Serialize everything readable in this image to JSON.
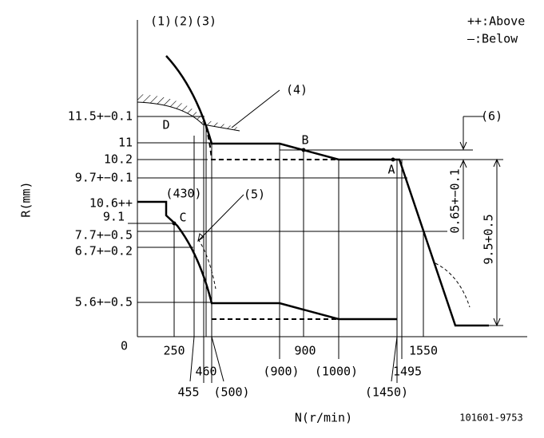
{
  "header": {
    "labels": [
      "(1)",
      "(2)",
      "(3)"
    ],
    "legend": [
      "++:Above",
      "—:Below"
    ]
  },
  "callouts": [
    "(4)",
    "(5)",
    "(6)"
  ],
  "y_labels": [
    "11.5+−0.1",
    "11",
    "10.2",
    "9.7+−0.1",
    "10.6++",
    "9.1",
    "7.7+−0.5",
    "6.7+−0.2",
    "5.6+−0.5",
    "0"
  ],
  "points": [
    "D",
    "B",
    "A",
    "C"
  ],
  "x_labels": [
    "(430)",
    "250",
    "900",
    "1550",
    "455",
    "460",
    "(500)",
    "(900)",
    "(1000)",
    "1495",
    "(1450)"
  ],
  "dimensions": [
    "0.65+−0.1",
    "9.5+0.5"
  ],
  "axis_titles": {
    "y": "R(mm)",
    "x": "N(r/min)"
  },
  "code": "101601-9753"
}
